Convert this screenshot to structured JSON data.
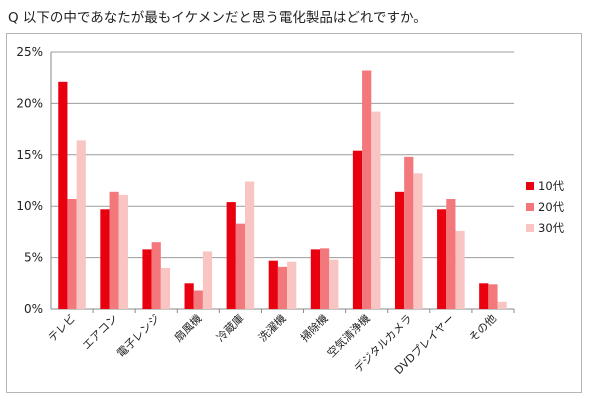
{
  "header": {
    "question": "Q 以下の中であなたが最もイケメンだと思う電化製品はどれですか。"
  },
  "chart_data": {
    "type": "bar",
    "title": "",
    "xlabel": "",
    "ylabel": "",
    "ylim": [
      0,
      25
    ],
    "y_ticks": [
      "0%",
      "5%",
      "10%",
      "15%",
      "20%",
      "25%"
    ],
    "y_tick_values": [
      0,
      5,
      10,
      15,
      20,
      25
    ],
    "grid": true,
    "legend_position": "right",
    "categories": [
      "テレビ",
      "エアコン",
      "電子レンジ",
      "扇風機",
      "冷蔵庫",
      "洗濯機",
      "掃除機",
      "空気清浄機",
      "デジタルカメラ",
      "DVDプレイヤー",
      "その他"
    ],
    "series": [
      {
        "name": "10代",
        "color": "#e8000f",
        "values": [
          22.1,
          9.7,
          5.8,
          2.5,
          10.4,
          4.7,
          5.8,
          15.4,
          11.4,
          9.7,
          2.5
        ]
      },
      {
        "name": "20代",
        "color": "#f2787c",
        "values": [
          10.7,
          11.4,
          6.5,
          1.8,
          8.3,
          4.1,
          5.9,
          23.2,
          14.8,
          10.7,
          2.4
        ]
      },
      {
        "name": "30代",
        "color": "#f9c5c3",
        "values": [
          16.4,
          11.1,
          4.0,
          5.6,
          12.4,
          4.6,
          4.8,
          19.2,
          13.2,
          7.6,
          0.7
        ]
      }
    ]
  }
}
